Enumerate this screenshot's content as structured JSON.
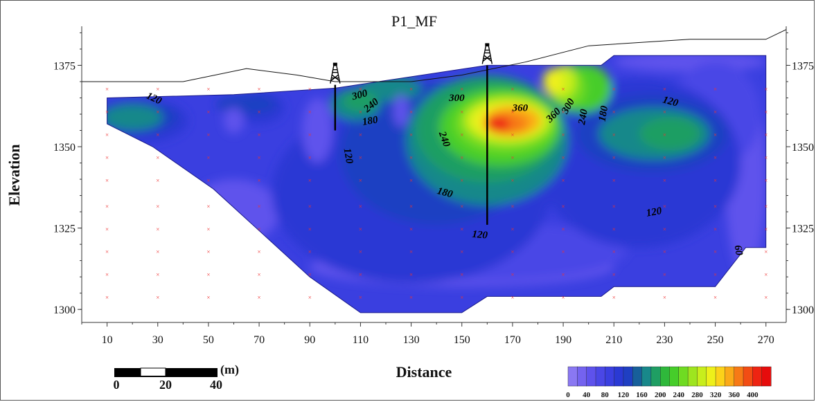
{
  "chart_data": {
    "type": "heatmap",
    "title": "P1_MF",
    "xlabel": "Distance",
    "ylabel": "Elevation",
    "xlim": [
      0,
      278
    ],
    "ylim": [
      1296,
      1387
    ],
    "x_ticks": [
      10,
      30,
      50,
      70,
      90,
      110,
      130,
      150,
      170,
      190,
      210,
      230,
      250,
      270
    ],
    "y_ticks": [
      1300,
      1325,
      1350,
      1375
    ],
    "colorbar": {
      "ticks": [
        0,
        40,
        80,
        120,
        160,
        200,
        240,
        280,
        320,
        360,
        400
      ],
      "levels": [
        0,
        20,
        40,
        60,
        80,
        100,
        120,
        140,
        160,
        180,
        200,
        220,
        240,
        260,
        280,
        300,
        320,
        340,
        360,
        380,
        400,
        420
      ],
      "colors": [
        "#8a78f2",
        "#7463ef",
        "#5e52ec",
        "#4a47e6",
        "#3a3fe0",
        "#2a39d4",
        "#1f3fc2",
        "#175f9a",
        "#18888a",
        "#1f9e63",
        "#2fb83b",
        "#46cd2a",
        "#6fdb22",
        "#9ee51f",
        "#c8ee1c",
        "#eef01a",
        "#fcd219",
        "#fbaa18",
        "#f77a16",
        "#f24d14",
        "#ee2412",
        "#e60c0c"
      ]
    },
    "terrain_profile": [
      [
        0,
        1370
      ],
      [
        40,
        1370
      ],
      [
        65,
        1374
      ],
      [
        85,
        1372
      ],
      [
        100,
        1370
      ],
      [
        130,
        1370
      ],
      [
        150,
        1372
      ],
      [
        175,
        1376
      ],
      [
        200,
        1381
      ],
      [
        240,
        1383
      ],
      [
        270,
        1383
      ],
      [
        278,
        1386
      ]
    ],
    "data_extent_polygon": [
      [
        10,
        1365
      ],
      [
        60,
        1366
      ],
      [
        100,
        1368
      ],
      [
        160,
        1375
      ],
      [
        205,
        1375
      ],
      [
        210,
        1378
      ],
      [
        270,
        1378
      ],
      [
        270,
        1319
      ],
      [
        262,
        1319
      ],
      [
        250,
        1307
      ],
      [
        210,
        1307
      ],
      [
        205,
        1304
      ],
      [
        160,
        1304
      ],
      [
        150,
        1299
      ],
      [
        110,
        1299
      ],
      [
        90,
        1310
      ],
      [
        52,
        1337
      ],
      [
        28,
        1350
      ],
      [
        10,
        1357
      ]
    ],
    "contour_labels": [
      {
        "text": "120",
        "x": 28,
        "y": 1364,
        "rot": 25
      },
      {
        "text": "300",
        "x": 110,
        "y": 1365,
        "rot": -15
      },
      {
        "text": "240",
        "x": 115,
        "y": 1362,
        "rot": -40
      },
      {
        "text": "180",
        "x": 114,
        "y": 1357,
        "rot": -10
      },
      {
        "text": "120",
        "x": 104,
        "y": 1347,
        "rot": 80
      },
      {
        "text": "300",
        "x": 148,
        "y": 1364,
        "rot": 0
      },
      {
        "text": "240",
        "x": 142,
        "y": 1352,
        "rot": 70
      },
      {
        "text": "180",
        "x": 143,
        "y": 1335,
        "rot": 15
      },
      {
        "text": "360",
        "x": 173,
        "y": 1361,
        "rot": 0
      },
      {
        "text": "360",
        "x": 187,
        "y": 1359,
        "rot": -45
      },
      {
        "text": "300",
        "x": 193,
        "y": 1362,
        "rot": -60
      },
      {
        "text": "240",
        "x": 199,
        "y": 1359,
        "rot": -80
      },
      {
        "text": "180",
        "x": 207,
        "y": 1360,
        "rot": -80
      },
      {
        "text": "120",
        "x": 232,
        "y": 1363,
        "rot": 15
      },
      {
        "text": "120",
        "x": 226,
        "y": 1329,
        "rot": -10
      },
      {
        "text": "120",
        "x": 157,
        "y": 1322,
        "rot": 5
      },
      {
        "text": "60",
        "x": 258,
        "y": 1318,
        "rot": 80
      }
    ],
    "boreholes": [
      {
        "x": 100,
        "top": 1369,
        "bottom": 1355
      },
      {
        "x": 160,
        "top": 1375,
        "bottom": 1326
      }
    ]
  },
  "scale_bar": {
    "ticks": [
      "0",
      "20",
      "40"
    ],
    "unit": "(m)"
  }
}
